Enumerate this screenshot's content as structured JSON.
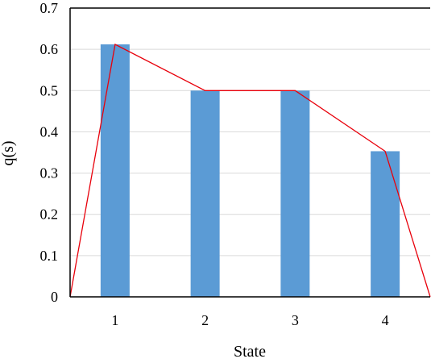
{
  "chart_data": {
    "type": "bar",
    "title": "",
    "xlabel": "State",
    "ylabel": "q(s)",
    "categories": [
      "1",
      "2",
      "3",
      "4"
    ],
    "values": [
      0.612,
      0.5,
      0.5,
      0.353
    ],
    "ylim": [
      0,
      0.7
    ],
    "yticks": [
      "0",
      "0.1",
      "0.2",
      "0.3",
      "0.4",
      "0.5",
      "0.6",
      "0.7"
    ],
    "grid": true,
    "legend": "none",
    "overlay_line": {
      "points": [
        {
          "x": 0.5,
          "y": 0
        },
        {
          "x": 1,
          "y": 0.612
        },
        {
          "x": 2,
          "y": 0.5
        },
        {
          "x": 3,
          "y": 0.5
        },
        {
          "x": 4,
          "y": 0.353
        },
        {
          "x": 4.5,
          "y": 0
        }
      ]
    },
    "colors": {
      "bar": "#5b9bd5",
      "line": "#e8000b",
      "grid": "#d9d9d9",
      "axis": "#000000"
    }
  }
}
